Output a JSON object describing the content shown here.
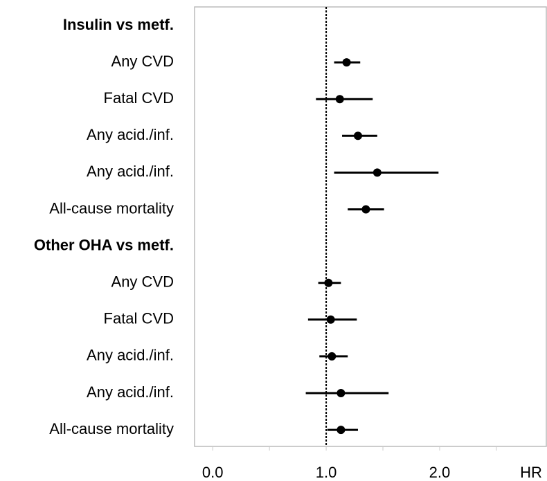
{
  "chart_data": {
    "type": "forest",
    "x_label": "HR",
    "xlim": [
      -0.16,
      2.94
    ],
    "xticks": [
      {
        "value": 0,
        "label": "0.0"
      },
      {
        "value": 1,
        "label": "1.0"
      },
      {
        "value": 2,
        "label": "2.0"
      }
    ],
    "minor_xticks": [
      0.5,
      1.5,
      2.5
    ],
    "reference_line": 1,
    "color": "#000000",
    "groups": [
      {
        "name": "Insulin vs metf.",
        "rows": [
          {
            "label": "Any CVD",
            "hr": 1.18,
            "lo": 1.07,
            "hi": 1.3
          },
          {
            "label": "Fatal CVD",
            "hr": 1.12,
            "lo": 0.91,
            "hi": 1.41
          },
          {
            "label": "Any acid./inf.",
            "hr": 1.28,
            "lo": 1.14,
            "hi": 1.45
          },
          {
            "label": "Any acid./inf.",
            "hr": 1.45,
            "lo": 1.07,
            "hi": 1.99
          },
          {
            "label": "All-cause mortality",
            "hr": 1.35,
            "lo": 1.19,
            "hi": 1.51
          }
        ]
      },
      {
        "name": "Other OHA vs metf.",
        "rows": [
          {
            "label": "Any CVD",
            "hr": 1.02,
            "lo": 0.93,
            "hi": 1.13
          },
          {
            "label": "Fatal CVD",
            "hr": 1.04,
            "lo": 0.84,
            "hi": 1.27
          },
          {
            "label": "Any acid./inf.",
            "hr": 1.05,
            "lo": 0.94,
            "hi": 1.19
          },
          {
            "label": "Any acid./inf.",
            "hr": 1.13,
            "lo": 0.82,
            "hi": 1.55
          },
          {
            "label": "All-cause mortality",
            "hr": 1.13,
            "lo": 1.01,
            "hi": 1.28
          }
        ]
      }
    ]
  }
}
